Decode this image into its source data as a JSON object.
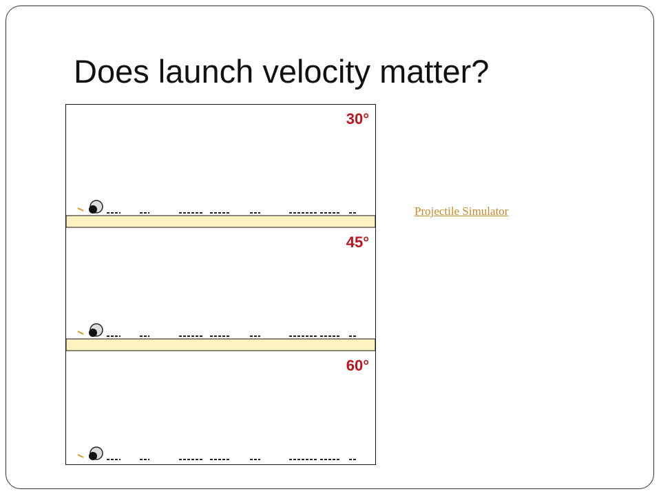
{
  "title": "Does launch velocity matter?",
  "panels": [
    {
      "angle_label": "30°"
    },
    {
      "angle_label": "45°"
    },
    {
      "angle_label": "60°"
    }
  ],
  "link": "Projectile Simulator"
}
